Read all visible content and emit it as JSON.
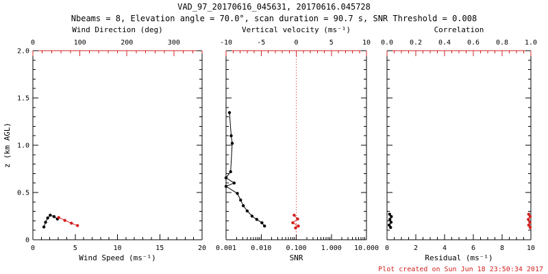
{
  "title": "VAD_97_20170616_045631, 20170616.045728",
  "subtitle": "Nbeams = 8, Elevation angle = 70.0°, scan duration = 90.7 s, SNR Threshold = 0.008",
  "footer": "Plot created on Sun Jun 18 23:50:34 2017",
  "colors": {
    "red": "#d21f1f",
    "black": "#000000"
  },
  "chart_data": [
    {
      "type": "scatter",
      "name": "wind",
      "y": {
        "label": "z (km AGL)",
        "min": 0,
        "max": 2,
        "ticks": [
          0,
          0.5,
          1,
          1.5,
          2
        ],
        "tick_labels": [
          "0",
          "0.5",
          "1.0",
          "1.5",
          "2.0"
        ],
        "minor_step": 0.1,
        "show_labels": true
      },
      "bottom": {
        "label": "Wind Speed (ms⁻¹)",
        "scale": "linear",
        "min": 0,
        "max": 20,
        "ticks": [
          0,
          5,
          10,
          15,
          20
        ],
        "tick_labels": [
          "0",
          "5",
          "10",
          "15",
          "20"
        ],
        "minor_step": 1
      },
      "top": {
        "label": "Wind Direction (deg)",
        "scale": "linear",
        "min": 0,
        "max": 360,
        "ticks": [
          0,
          100,
          200,
          300
        ],
        "tick_labels": [
          "0",
          "100",
          "200",
          "300"
        ],
        "minor_step": 20
      },
      "series": [
        {
          "name": "wind-speed",
          "axis": "bottom",
          "color": "black",
          "points": [
            [
              1.3,
              0.135
            ],
            [
              1.5,
              0.185
            ],
            [
              1.75,
              0.23
            ],
            [
              2.05,
              0.26
            ],
            [
              2.5,
              0.245
            ],
            [
              2.9,
              0.22
            ]
          ]
        },
        {
          "name": "wind-direction",
          "axis": "top",
          "color": "red",
          "points": [
            [
              55,
              0.235
            ],
            [
              68,
              0.205
            ],
            [
              82,
              0.175
            ],
            [
              95,
              0.15
            ]
          ]
        }
      ]
    },
    {
      "type": "scatter",
      "name": "snr",
      "y": {
        "min": 0,
        "max": 2,
        "ticks": [
          0,
          0.5,
          1,
          1.5,
          2
        ],
        "minor_step": 0.1,
        "show_labels": false
      },
      "bottom": {
        "label": "SNR",
        "scale": "log",
        "min": 0.001,
        "max": 10,
        "ticks": [
          0.001,
          0.01,
          0.1,
          1,
          10
        ],
        "tick_labels": [
          "0.001",
          "0.010",
          "0.100",
          "1.000",
          "10.000"
        ]
      },
      "top": {
        "label": "Vertical velocity (ms⁻¹)",
        "scale": "linear",
        "min": -10,
        "max": 10,
        "ticks": [
          -10,
          -5,
          0,
          5,
          10
        ],
        "tick_labels": [
          "-10",
          "-5",
          "0",
          "5",
          "10"
        ],
        "minor_step": 1
      },
      "refline": {
        "axis": "top",
        "value": 0,
        "style": "dotted",
        "color": "red"
      },
      "series": [
        {
          "name": "snr-profile",
          "axis": "bottom",
          "color": "black",
          "points": [
            [
              0.00125,
              1.345
            ],
            [
              0.0014,
              1.1
            ],
            [
              0.0015,
              1.02
            ],
            [
              0.00135,
              0.72
            ],
            [
              0.001,
              0.655
            ],
            [
              0.0017,
              0.6
            ],
            [
              0.001,
              0.565
            ],
            [
              0.0021,
              0.49
            ],
            [
              0.0026,
              0.42
            ],
            [
              0.0031,
              0.36
            ],
            [
              0.004,
              0.305
            ],
            [
              0.0055,
              0.25
            ],
            [
              0.0075,
              0.215
            ],
            [
              0.0105,
              0.18
            ],
            [
              0.0125,
              0.145
            ]
          ]
        },
        {
          "name": "vertical-velocity",
          "axis": "top",
          "color": "red",
          "points": [
            [
              -0.3,
              0.26
            ],
            [
              0.2,
              0.22
            ],
            [
              -0.5,
              0.18
            ],
            [
              0.3,
              0.145
            ],
            [
              -0.1,
              0.125
            ]
          ]
        }
      ]
    },
    {
      "type": "scatter",
      "name": "residual",
      "y": {
        "min": 0,
        "max": 2,
        "ticks": [
          0,
          0.5,
          1,
          1.5,
          2
        ],
        "minor_step": 0.1,
        "show_labels": false
      },
      "bottom": {
        "label": "Residual (ms⁻¹)",
        "scale": "linear",
        "min": 0,
        "max": 10,
        "ticks": [
          0,
          2,
          4,
          6,
          8,
          10
        ],
        "tick_labels": [
          "0",
          "2",
          "4",
          "6",
          "8",
          "10"
        ],
        "minor_step": 0.5
      },
      "top": {
        "label": "Correlation",
        "scale": "linear",
        "min": 0,
        "max": 1,
        "ticks": [
          0,
          0.2,
          0.4,
          0.6,
          0.8,
          1
        ],
        "tick_labels": [
          "0.0",
          "0.2",
          "0.4",
          "0.6",
          "0.8",
          "1.0"
        ],
        "minor_step": 0.05
      },
      "series": [
        {
          "name": "residual-profile",
          "axis": "bottom",
          "color": "black",
          "points": [
            [
              0.18,
              0.27
            ],
            [
              0.3,
              0.245
            ],
            [
              0.2,
              0.215
            ],
            [
              0.28,
              0.185
            ],
            [
              0.15,
              0.155
            ],
            [
              0.25,
              0.13
            ]
          ]
        },
        {
          "name": "correlation",
          "axis": "top",
          "color": "red",
          "points": [
            [
              0.985,
              0.27
            ],
            [
              0.995,
              0.245
            ],
            [
              0.982,
              0.215
            ],
            [
              0.993,
              0.185
            ],
            [
              0.985,
              0.155
            ],
            [
              0.995,
              0.13
            ]
          ]
        }
      ]
    }
  ]
}
